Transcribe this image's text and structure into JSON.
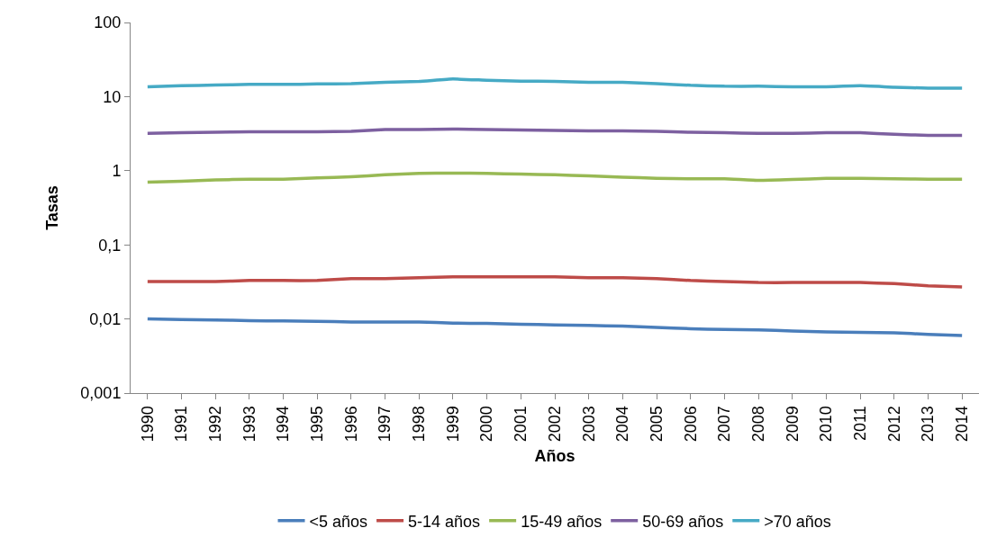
{
  "chart_data": {
    "type": "line",
    "xlabel": "Años",
    "ylabel": "Tasas",
    "log": "y",
    "grid": false,
    "legend": "bottom",
    "marker": "none",
    "line_style": "solid",
    "categories": [
      "1990",
      "1991",
      "1992",
      "1993",
      "1994",
      "1995",
      "1996",
      "1997",
      "1998",
      "1999",
      "2000",
      "2001",
      "2002",
      "2003",
      "2004",
      "2005",
      "2006",
      "2007",
      "2008",
      "2009",
      "2010",
      "2011",
      "2012",
      "2013",
      "2014"
    ],
    "ylim": [
      0.001,
      100
    ],
    "yticks": [
      {
        "value": 0.001,
        "label": "0,001"
      },
      {
        "value": 0.01,
        "label": "0,01"
      },
      {
        "value": 0.1,
        "label": "0,1"
      },
      1,
      10,
      100
    ],
    "series": [
      {
        "name": "<5 años",
        "color": "#4a7ebb",
        "values": [
          0.01,
          0.0098,
          0.0097,
          0.0095,
          0.0094,
          0.0093,
          0.0091,
          0.0091,
          0.0091,
          0.0088,
          0.0087,
          0.0085,
          0.0083,
          0.0082,
          0.008,
          0.0077,
          0.0074,
          0.0072,
          0.0071,
          0.0069,
          0.0067,
          0.0066,
          0.0065,
          0.0062,
          0.006
        ]
      },
      {
        "name": "5-14 años",
        "color": "#be4b48",
        "values": [
          0.032,
          0.032,
          0.032,
          0.033,
          0.033,
          0.033,
          0.035,
          0.035,
          0.036,
          0.037,
          0.037,
          0.037,
          0.037,
          0.036,
          0.036,
          0.035,
          0.033,
          0.032,
          0.031,
          0.031,
          0.031,
          0.031,
          0.03,
          0.028,
          0.027
        ]
      },
      {
        "name": "15-49 años",
        "color": "#98b954",
        "values": [
          0.7,
          0.72,
          0.75,
          0.77,
          0.77,
          0.8,
          0.83,
          0.88,
          0.92,
          0.93,
          0.92,
          0.9,
          0.88,
          0.85,
          0.82,
          0.79,
          0.78,
          0.78,
          0.74,
          0.76,
          0.79,
          0.79,
          0.78,
          0.77,
          0.77
        ]
      },
      {
        "name": "50-69 años",
        "color": "#7d60a0",
        "values": [
          3.2,
          3.25,
          3.3,
          3.35,
          3.35,
          3.35,
          3.4,
          3.6,
          3.6,
          3.65,
          3.6,
          3.55,
          3.5,
          3.45,
          3.45,
          3.4,
          3.3,
          3.25,
          3.2,
          3.2,
          3.25,
          3.25,
          3.1,
          3.0,
          3.0
        ]
      },
      {
        "name": ">70 años",
        "color": "#46aac5",
        "values": [
          13.6,
          14,
          14.3,
          14.6,
          14.6,
          14.8,
          15,
          15.6,
          16,
          17.3,
          16.6,
          16.2,
          16,
          15.6,
          15.6,
          15,
          14.2,
          13.8,
          13.8,
          13.6,
          13.6,
          14,
          13.4,
          13,
          13
        ]
      }
    ]
  }
}
